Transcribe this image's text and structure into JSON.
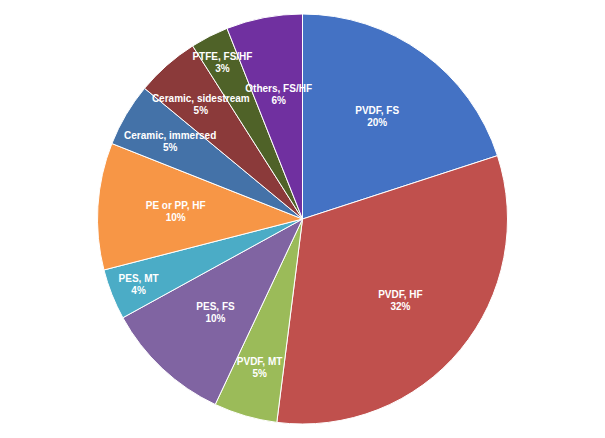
{
  "chart_data": {
    "type": "pie",
    "categories": [
      "PVDF, FS\n20%",
      "PVDF, HF\n32%",
      "PVDF, MT\n5%",
      "PES, FS\n10%",
      "PES, MT\n4%",
      "PE or PP, HF\n10%",
      "Ceramic, immersed\n5%",
      "Ceramic, sidestream\n5%",
      "PTFE, FS/HF\n3%",
      "Others, FS/HF\n6%"
    ],
    "values": [
      20,
      32,
      5,
      10,
      4,
      10,
      5,
      5,
      3,
      6
    ],
    "colors": [
      "#4472C4",
      "#C0504D",
      "#9BBB59",
      "#8064A2",
      "#4BACC6",
      "#F79646",
      "#4472A8",
      "#8B3A3A",
      "#4F6228",
      "#7030A0"
    ]
  }
}
